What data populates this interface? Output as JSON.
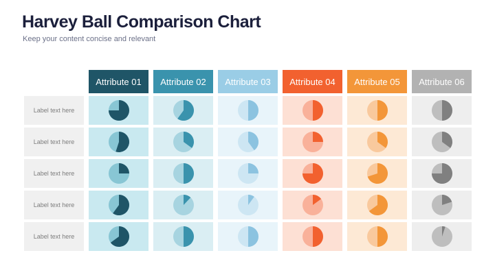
{
  "header": {
    "title": "Harvey Ball Comparison Chart",
    "subtitle": "Keep your content concise and relevant"
  },
  "chart_data": {
    "type": "table",
    "title": "Harvey Ball Comparison Chart",
    "columns": [
      "Attribute 01",
      "Attribute 02",
      "Attribute 03",
      "Attribute 04",
      "Attribute 05",
      "Attribute 06"
    ],
    "rows": [
      "Label text here",
      "Label text here",
      "Label text here",
      "Label text here",
      "Label text here"
    ],
    "values": [
      [
        0.75,
        0.6,
        0.5,
        0.5,
        0.5,
        0.5
      ],
      [
        0.55,
        0.35,
        0.4,
        0.25,
        0.35,
        0.35
      ],
      [
        0.25,
        0.5,
        0.25,
        0.75,
        0.7,
        0.75
      ],
      [
        0.6,
        0.12,
        0.1,
        0.15,
        0.65,
        0.2
      ],
      [
        0.65,
        0.5,
        0.5,
        0.5,
        0.5,
        0.05
      ]
    ],
    "palette": [
      {
        "header": "#1f5567",
        "cell": "#c9e9f0",
        "filled": "#1f5567",
        "empty": "#88c6d4"
      },
      {
        "header": "#3a93ad",
        "cell": "#daeef3",
        "filled": "#3a93ad",
        "empty": "#a7d4e0"
      },
      {
        "header": "#9acde6",
        "cell": "#e8f4fa",
        "filled": "#8cc3e0",
        "empty": "#cde6f3"
      },
      {
        "header": "#f2612f",
        "cell": "#fde0d4",
        "filled": "#f2612f",
        "empty": "#f9b19a"
      },
      {
        "header": "#f39639",
        "cell": "#fde9d5",
        "filled": "#f39639",
        "empty": "#f9c99d"
      },
      {
        "header": "#b2b2b2",
        "cell": "#eeeeee",
        "filled": "#808080",
        "empty": "#bebebe"
      }
    ]
  }
}
